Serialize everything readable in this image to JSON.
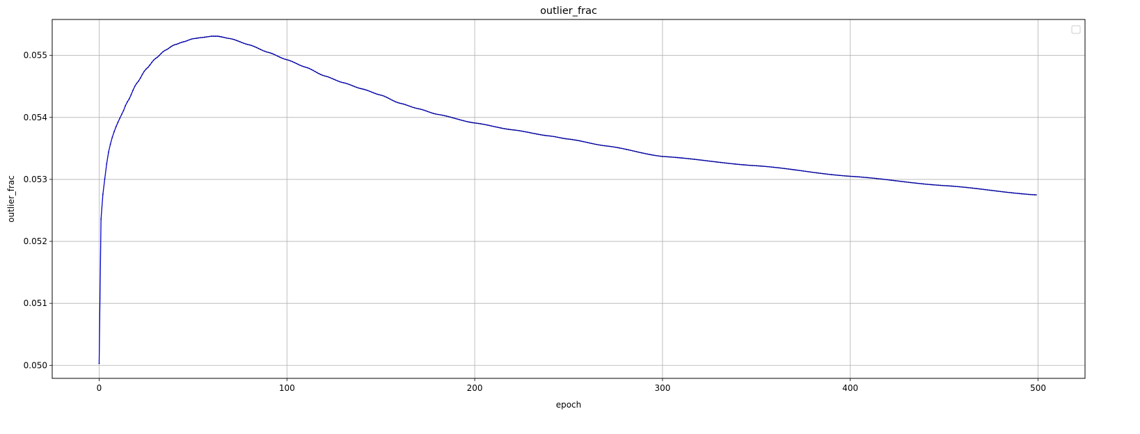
{
  "chart_data": {
    "type": "line",
    "title": "outlier_frac",
    "xlabel": "epoch",
    "ylabel": "outlier_frac",
    "xlim": [
      -25,
      525
    ],
    "ylim": [
      0.04979,
      0.05558
    ],
    "x_ticks": [
      0,
      100,
      200,
      300,
      400,
      500
    ],
    "y_ticks": [
      0.05,
      0.051,
      0.052,
      0.053,
      0.054,
      0.055
    ],
    "y_tick_labels": [
      "0.050",
      "0.051",
      "0.052",
      "0.053",
      "0.054",
      "0.055"
    ],
    "x_tick_labels": [
      "0",
      "100",
      "200",
      "300",
      "400",
      "500"
    ],
    "grid": true,
    "legend_placement": "top-right",
    "line_color": "#0000cc",
    "series": [
      {
        "marker": "dot",
        "x_start": 0,
        "x_end": 499,
        "x_step": 1,
        "anchor_points": [
          [
            0,
            0.05003
          ],
          [
            1,
            0.05236
          ],
          [
            2,
            0.05276
          ],
          [
            3,
            0.05301
          ],
          [
            4,
            0.05325
          ],
          [
            5,
            0.05344
          ],
          [
            6,
            0.05357
          ],
          [
            7,
            0.05368
          ],
          [
            8,
            0.05377
          ],
          [
            9,
            0.05385
          ],
          [
            10,
            0.05392
          ],
          [
            12,
            0.05405
          ],
          [
            15,
            0.05425
          ],
          [
            20,
            0.05455
          ],
          [
            25,
            0.05478
          ],
          [
            30,
            0.05495
          ],
          [
            35,
            0.05508
          ],
          [
            40,
            0.05517
          ],
          [
            45,
            0.05522
          ],
          [
            50,
            0.05527
          ],
          [
            55,
            0.05529
          ],
          [
            60,
            0.05531
          ],
          [
            63,
            0.05531
          ],
          [
            70,
            0.05527
          ],
          [
            80,
            0.05517
          ],
          [
            90,
            0.05505
          ],
          [
            100,
            0.05493
          ],
          [
            110,
            0.05481
          ],
          [
            120,
            0.05467
          ],
          [
            130,
            0.05456
          ],
          [
            140,
            0.05446
          ],
          [
            150,
            0.05436
          ],
          [
            160,
            0.05423
          ],
          [
            170,
            0.05414
          ],
          [
            180,
            0.05405
          ],
          [
            200,
            0.05391
          ],
          [
            220,
            0.0538
          ],
          [
            240,
            0.0537
          ],
          [
            250,
            0.05365
          ],
          [
            270,
            0.05354
          ],
          [
            300,
            0.05337
          ],
          [
            350,
            0.05322
          ],
          [
            400,
            0.05305
          ],
          [
            450,
            0.0529
          ],
          [
            499,
            0.05275
          ]
        ]
      }
    ]
  }
}
